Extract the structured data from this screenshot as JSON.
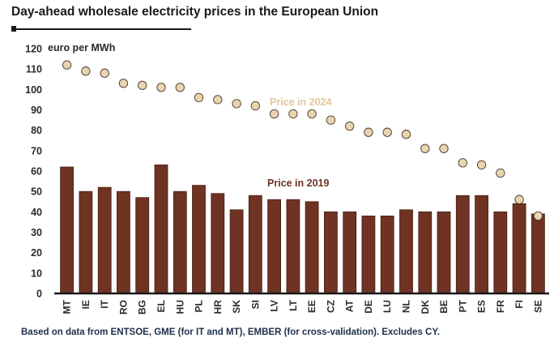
{
  "title": "Day-ahead wholesale electricity prices in the European Union",
  "source_note": "Based on data from ENTSOE, GME (for IT and MT), EMBER (for cross-validation). Excludes CY.",
  "colors": {
    "bar": "#6e3322",
    "bar_stroke": "#4a1f14",
    "dot_fill": "#e8d5b0",
    "dot_stroke": "#4a3a2a",
    "label_2024": "#e2c79a",
    "label_2019": "#6e3322",
    "axis": "#1a1a1a"
  },
  "chart_data": {
    "type": "bar",
    "ylabel": "euro per MWh",
    "ylim": [
      0,
      120
    ],
    "yticks": [
      0,
      10,
      20,
      30,
      40,
      50,
      60,
      70,
      80,
      90,
      100,
      110,
      120
    ],
    "categories": [
      "MT",
      "IE",
      "IT",
      "RO",
      "BG",
      "EL",
      "HU",
      "PL",
      "HR",
      "SK",
      "SI",
      "LV",
      "LT",
      "EE",
      "CZ",
      "AT",
      "DE",
      "LU",
      "NL",
      "DK",
      "BE",
      "PT",
      "ES",
      "FR",
      "FI",
      "SE"
    ],
    "series": [
      {
        "name": "Price in 2019",
        "kind": "bar",
        "values": [
          62,
          50,
          52,
          50,
          47,
          63,
          50,
          53,
          49,
          41,
          48,
          46,
          46,
          45,
          40,
          40,
          38,
          38,
          41,
          40,
          40,
          48,
          48,
          40,
          44,
          39
        ]
      },
      {
        "name": "Price in 2024",
        "kind": "dot",
        "values": [
          112,
          109,
          108,
          103,
          102,
          101,
          101,
          96,
          95,
          93,
          92,
          88,
          88,
          88,
          85,
          82,
          79,
          79,
          78,
          71,
          71,
          64,
          63,
          59,
          46,
          38
        ]
      }
    ]
  }
}
